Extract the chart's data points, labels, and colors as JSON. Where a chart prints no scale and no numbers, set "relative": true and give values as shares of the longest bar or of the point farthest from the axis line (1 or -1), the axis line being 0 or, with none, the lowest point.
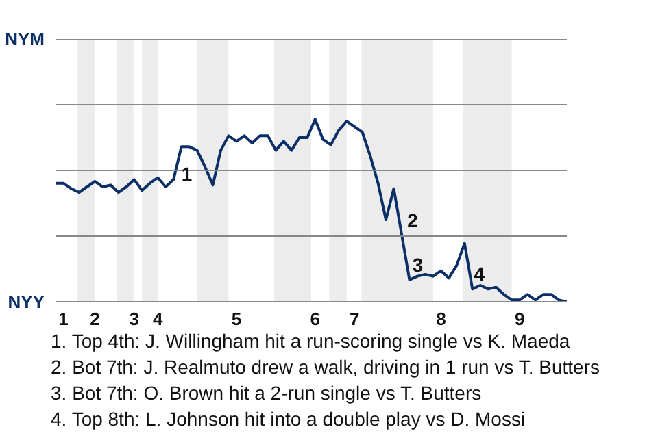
{
  "chart_data": {
    "type": "line",
    "relative": true,
    "categories": [
      null,
      "1",
      null,
      null,
      null,
      "2",
      null,
      null,
      null,
      null,
      "3",
      null,
      null,
      "4",
      null,
      null,
      null,
      null,
      null,
      null,
      null,
      null,
      null,
      "5",
      null,
      null,
      null,
      null,
      null,
      null,
      null,
      null,
      null,
      "6",
      null,
      null,
      null,
      null,
      "7",
      null,
      null,
      null,
      null,
      null,
      null,
      null,
      null,
      null,
      null,
      "8",
      null,
      null,
      null,
      null,
      null,
      null,
      null,
      null,
      null,
      "9",
      null,
      null,
      null,
      null,
      null,
      null
    ],
    "series": [
      {
        "color": "#0b2f66",
        "values": [
          0.65,
          0.65,
          0.62,
          0.6,
          0.63,
          0.66,
          0.63,
          0.64,
          0.6,
          0.63,
          0.67,
          0.61,
          0.65,
          0.68,
          0.63,
          0.67,
          0.85,
          0.85,
          0.83,
          0.74,
          0.64,
          0.83,
          0.91,
          0.88,
          0.91,
          0.87,
          0.91,
          0.91,
          0.83,
          0.88,
          0.83,
          0.9,
          0.9,
          1,
          0.89,
          0.86,
          0.94,
          0.99,
          0.96,
          0.93,
          0.8,
          0.65,
          0.45,
          0.62,
          0.37,
          0.12,
          0.14,
          0.15,
          0.14,
          0.17,
          0.13,
          0.2,
          0.32,
          0.07,
          0.09,
          0.07,
          0.08,
          0.04,
          0.01,
          0.01,
          0.04,
          0.01,
          0.04,
          0.04,
          0.01,
          0
        ]
      }
    ],
    "ref_lines": [
      {
        "axis": "y",
        "value": 0.36,
        "color": "#888888"
      },
      {
        "axis": "y",
        "value": 0.72,
        "color": "#888888"
      },
      {
        "axis": "y",
        "value": 1.08,
        "color": "#888888"
      }
    ],
    "annotations": [
      "NYM",
      "NYY",
      "1",
      "2",
      "3",
      "4",
      "1. Top 4th: J. Willingham hit a run-scoring single vs K. Maeda",
      "2. Bot 7th: J. Realmuto drew a walk, driving in 1 run vs T. Butters",
      "3. Bot 7th: O. Brown hit a 2-run single vs T. Butters",
      "4. Top 8th: L. Johnson hit into a double play vs D. Mossi"
    ]
  }
}
